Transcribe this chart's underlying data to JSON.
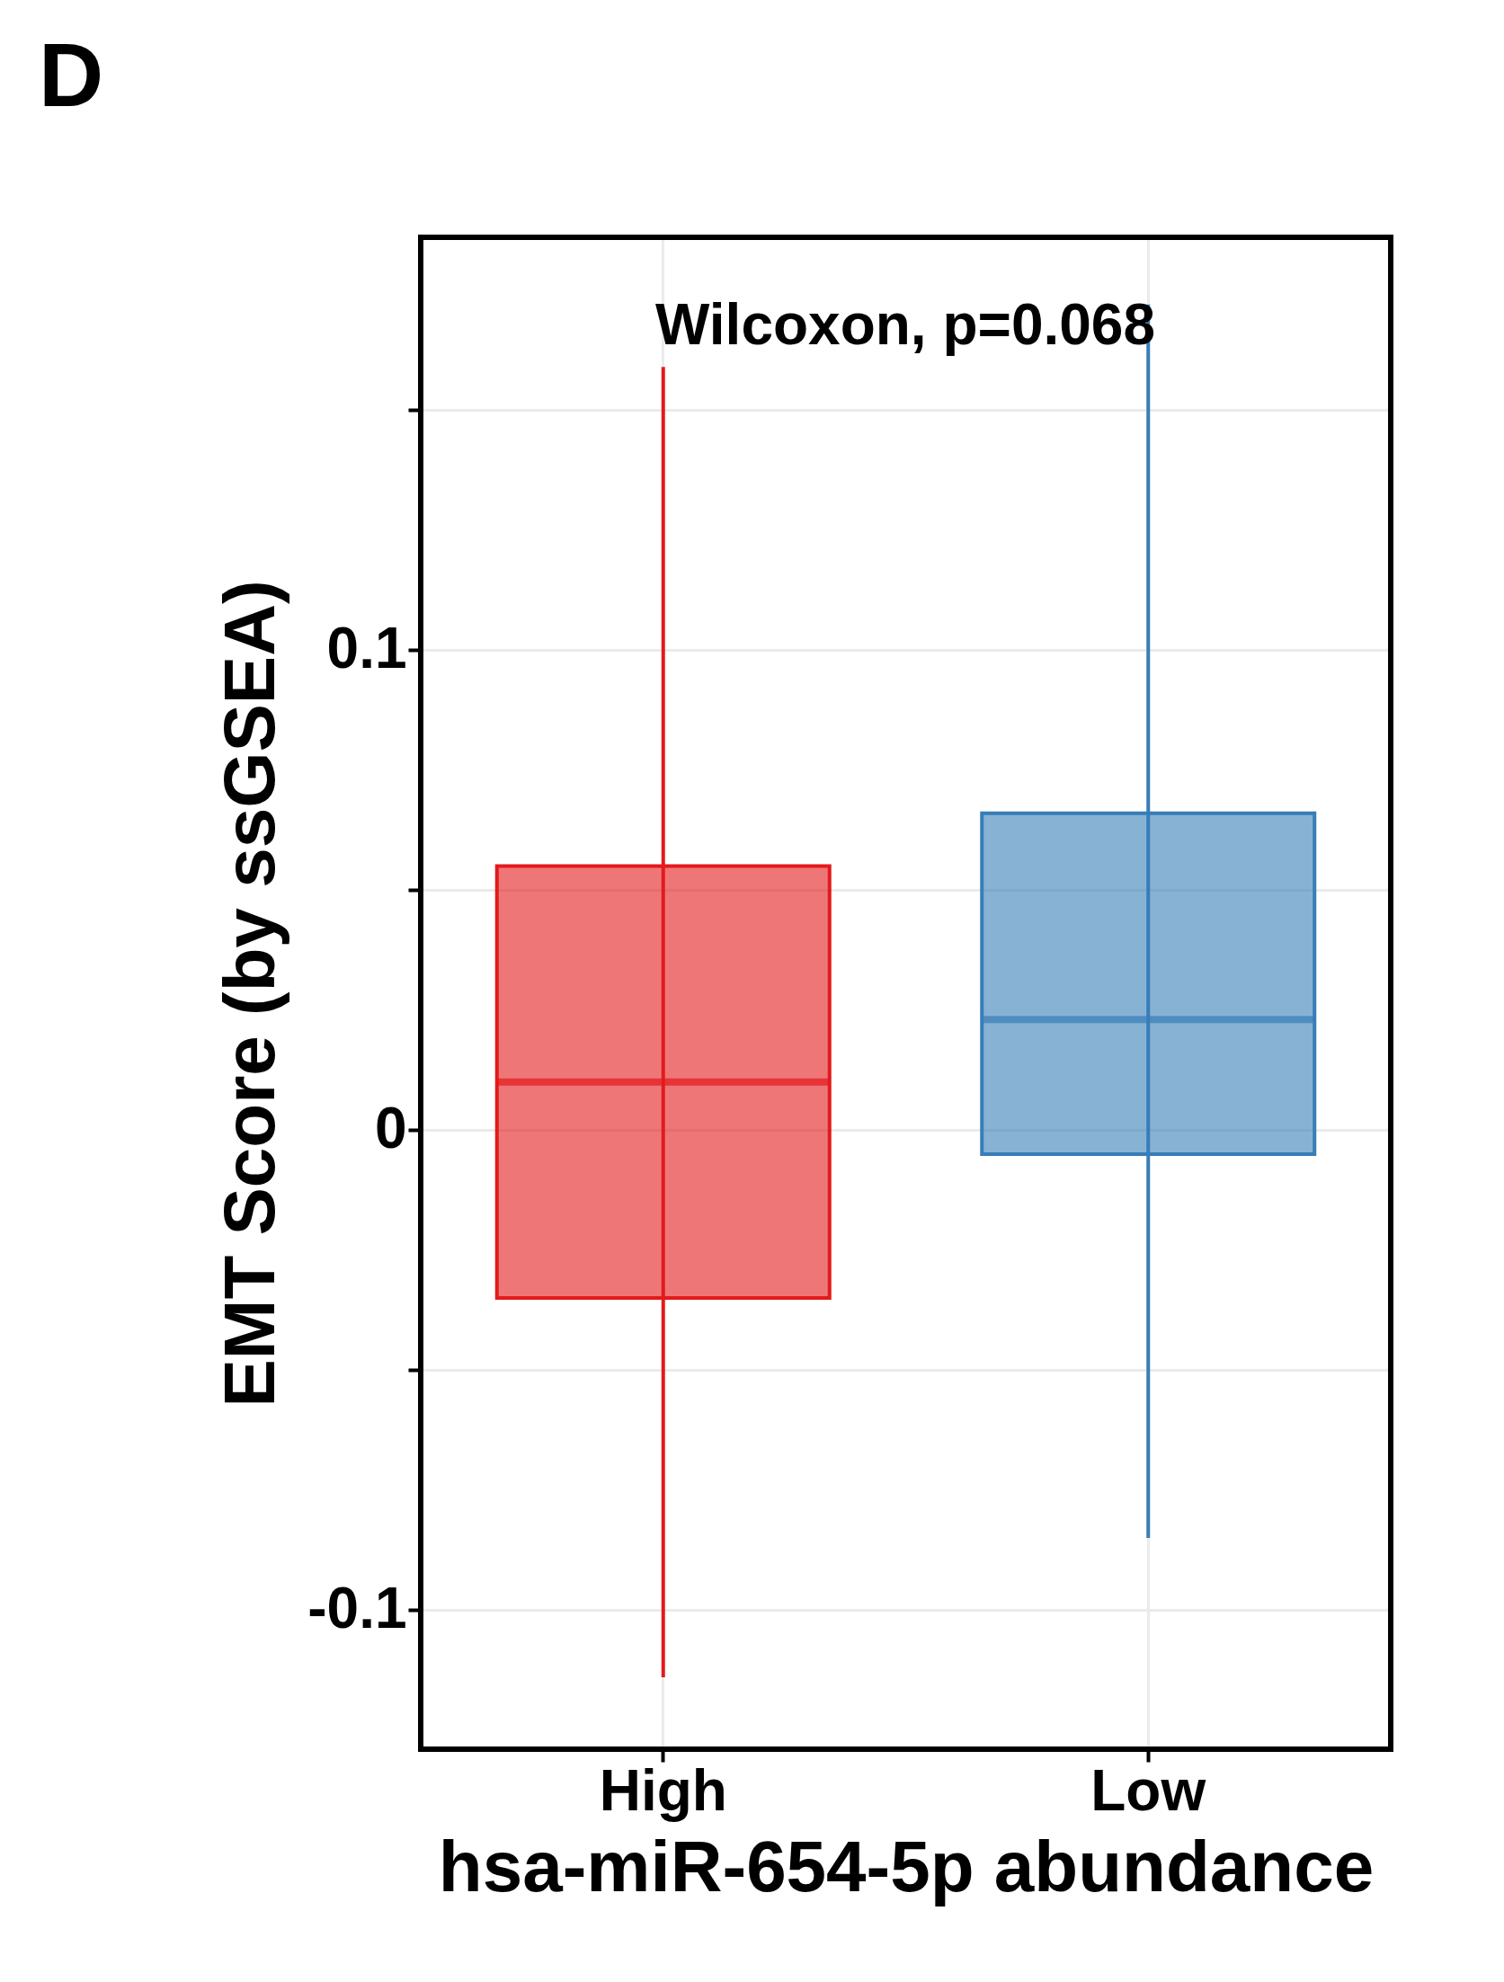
{
  "chart_data": {
    "type": "box",
    "title": "D",
    "xlabel": "hsa-miR-654-5p abundance",
    "ylabel": "EMT Score (by ssGSEA)",
    "categories": [
      "High",
      "Low"
    ],
    "boxes": [
      {
        "low": -0.114,
        "q1": -0.035,
        "median": 0.01,
        "q3": 0.055,
        "high": 0.159
      },
      {
        "low": -0.085,
        "q1": -0.005,
        "median": 0.023,
        "q3": 0.066,
        "high": 0.172
      }
    ],
    "colors": [
      "#e31a1c",
      "#377eb8"
    ],
    "ylim": [
      -0.129,
      0.186
    ],
    "yticks": [
      {
        "value": -0.1,
        "label": "-0.1"
      },
      {
        "value": -0.05,
        "label": null
      },
      0,
      {
        "value": 0.05,
        "label": null
      },
      {
        "value": 0.1,
        "label": "0.1"
      },
      {
        "value": 0.15,
        "label": null
      }
    ],
    "grid": true,
    "annotations": [
      "Wilcoxon, p=0.068"
    ]
  }
}
